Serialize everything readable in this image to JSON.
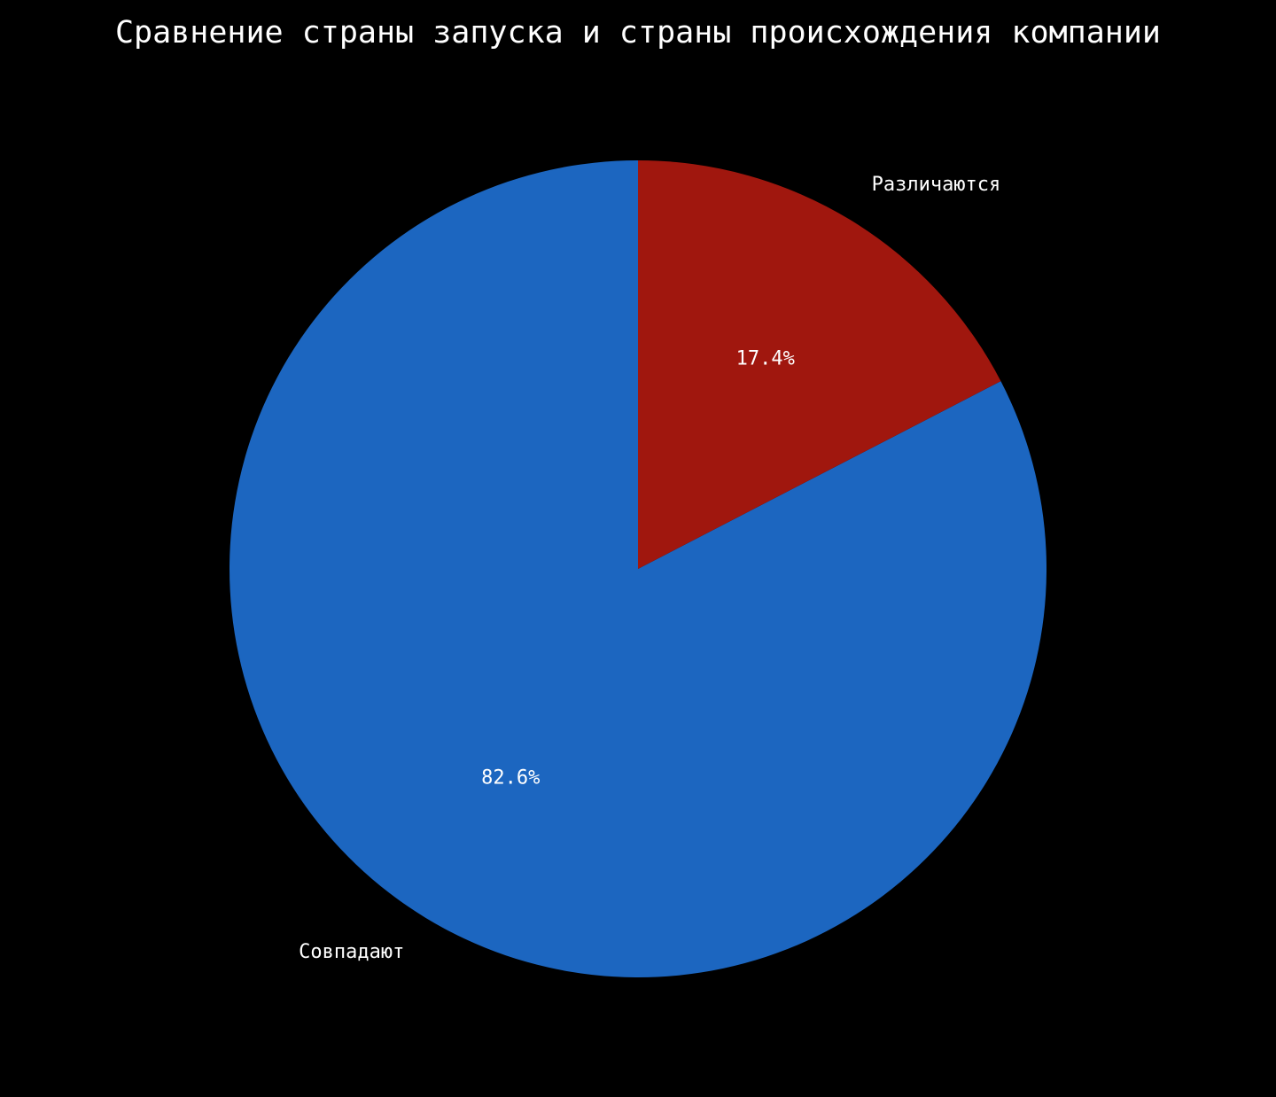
{
  "chart_data": {
    "type": "pie",
    "title": "Сравнение страны запуска и страны происхождения компании",
    "categories": [
      "Совпадают",
      "Различаются"
    ],
    "values": [
      82.6,
      17.4
    ],
    "value_labels": [
      "82.6%",
      "17.4%"
    ],
    "colors": [
      "#1c66c0",
      "#a0170e"
    ]
  }
}
